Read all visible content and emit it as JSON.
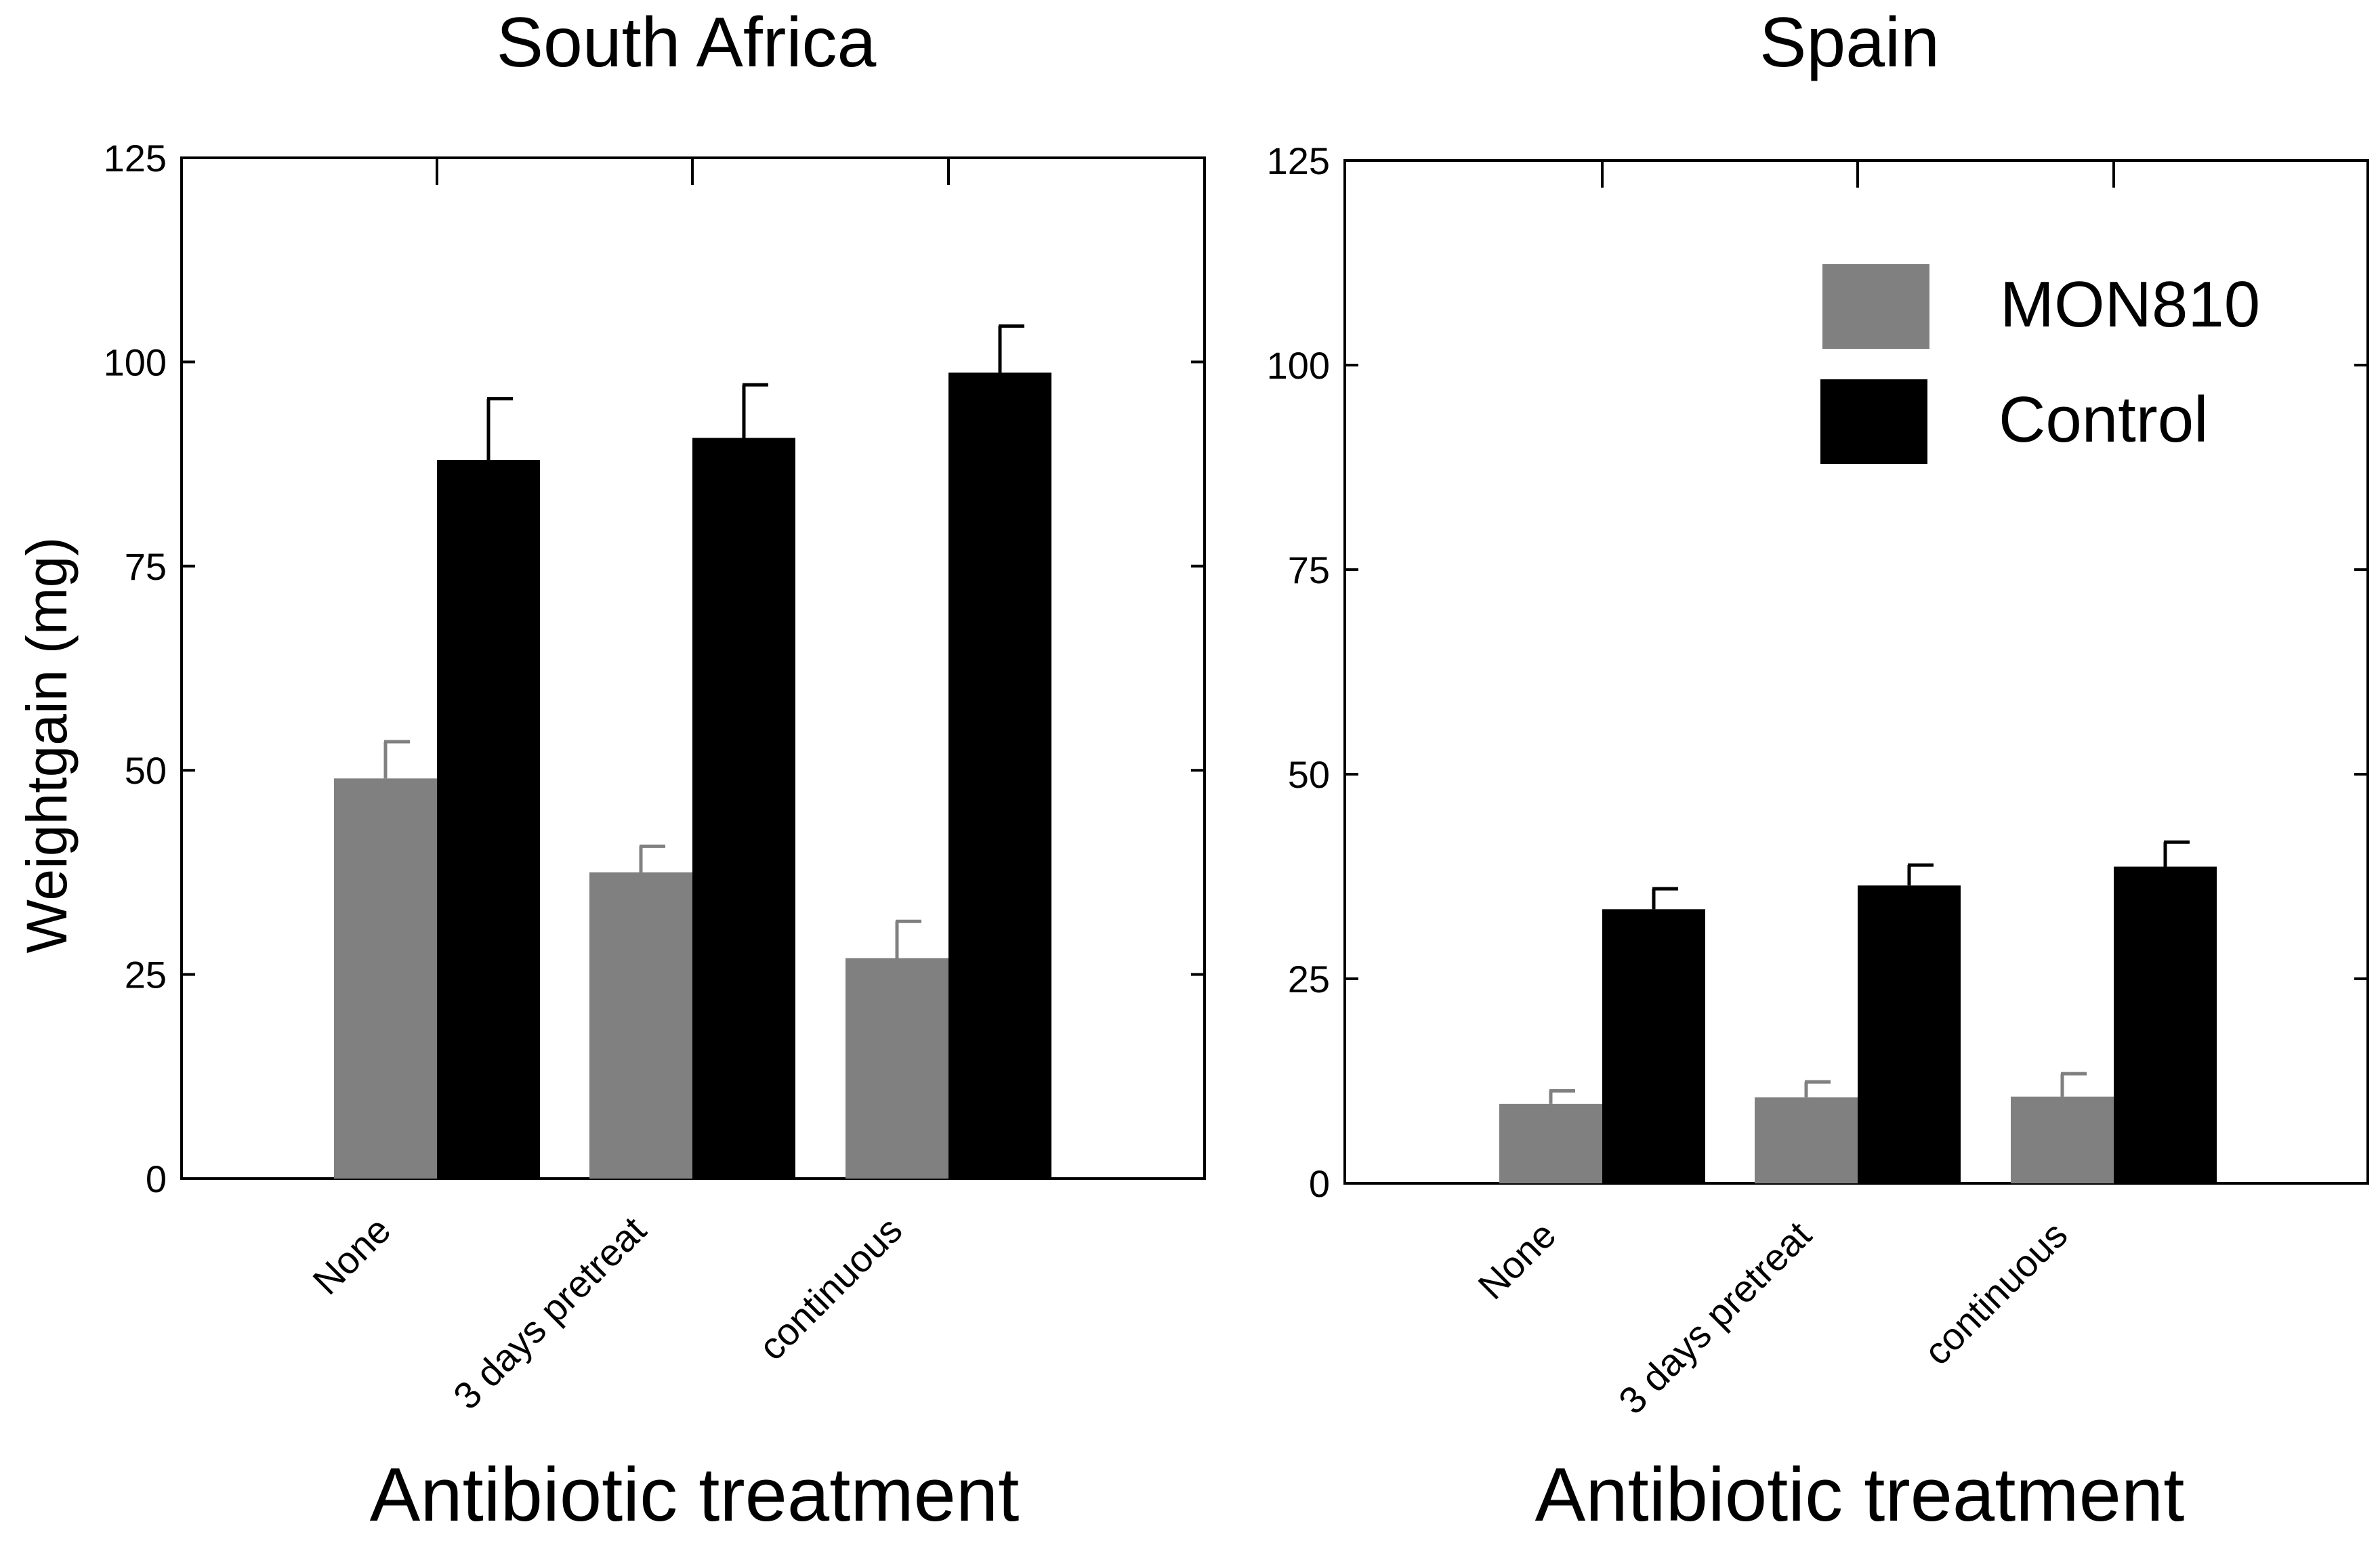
{
  "chart_data": [
    {
      "type": "bar",
      "title": "South Africa",
      "xlabel": "Antibiotic treatment",
      "ylabel": "Weightgain (mg)",
      "ylim": [
        0,
        125
      ],
      "yticks": [
        0,
        25,
        50,
        75,
        100,
        125
      ],
      "categories": [
        "None",
        "3 days pretreat",
        "continuous"
      ],
      "series": [
        {
          "name": "MON810",
          "color": "#808080",
          "values": [
            49,
            37.5,
            27
          ],
          "errors": [
            4.5,
            3.2,
            4.5
          ]
        },
        {
          "name": "Control",
          "color": "#000000",
          "values": [
            88,
            90.7,
            98.7
          ],
          "errors": [
            7.5,
            6.5,
            5.7
          ]
        }
      ],
      "legend": null
    },
    {
      "type": "bar",
      "title": "Spain",
      "xlabel": "Antibiotic treatment",
      "ylabel": "",
      "ylim": [
        0,
        125
      ],
      "yticks": [
        0,
        25,
        50,
        75,
        100,
        125
      ],
      "categories": [
        "None",
        "3 days pretreat",
        "continuous"
      ],
      "series": [
        {
          "name": "MON810",
          "color": "#808080",
          "values": [
            9.7,
            10.5,
            10.6
          ],
          "errors": [
            1.6,
            1.9,
            2.8
          ]
        },
        {
          "name": "Control",
          "color": "#000000",
          "values": [
            33.5,
            36.4,
            38.7
          ],
          "errors": [
            2.5,
            2.5,
            3.0
          ]
        }
      ],
      "legend": "top-right"
    }
  ]
}
